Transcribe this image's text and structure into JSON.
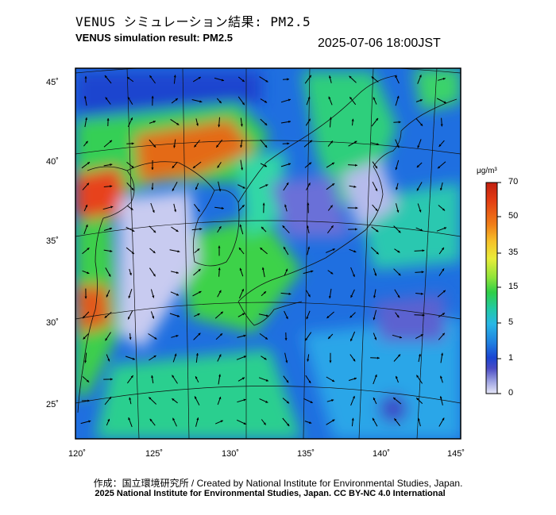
{
  "header": {
    "title_jp": "VENUS シミュレーション結果: PM2.5",
    "title_en": "VENUS simulation result: PM2.5",
    "timestamp": "2025-07-06 18:00JST"
  },
  "map": {
    "region": "East Asia / Japan",
    "lon_ticks": [
      "120˚",
      "125˚",
      "130˚",
      "135˚",
      "140˚",
      "145˚"
    ],
    "lat_ticks": [
      "45˚",
      "40˚",
      "35˚",
      "30˚",
      "25˚"
    ],
    "overlay": "wind-vectors"
  },
  "colorbar": {
    "unit": "μg/m³",
    "labels": [
      "70",
      "50",
      "35",
      "15",
      "5",
      "1",
      "0"
    ],
    "colors": [
      "#c01f10",
      "#e23a12",
      "#f07f18",
      "#f6c22a",
      "#e9ed3a",
      "#8fe43a",
      "#2fcf47",
      "#22c9a6",
      "#28b7e6",
      "#1f7fe0",
      "#1b45d2",
      "#4a4bc4",
      "#9a9fe0",
      "#e6e7f8"
    ]
  },
  "footer": {
    "credit_1": "作成：国立環境研究所 / Created by National Institute for Environmental Studies, Japan.",
    "credit_2": "2025 National Institute for Environmental Studies, Japan. CC BY-NC 4.0 International"
  }
}
